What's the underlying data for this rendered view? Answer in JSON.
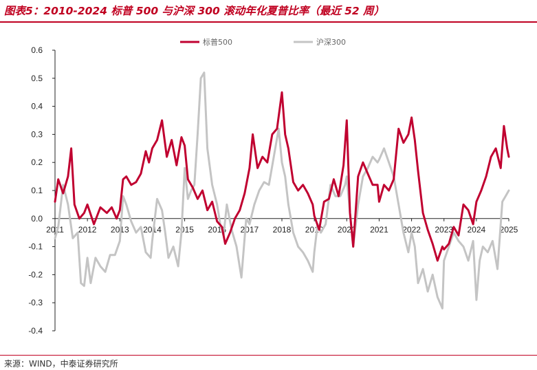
{
  "header": {
    "title": "图表5：2010-2024 标普 500 与沪深 300 滚动年化夏普比率（最近 52 周）"
  },
  "footer": {
    "source": "来源：WIND，中泰证券研究所"
  },
  "colors": {
    "spx": "#c00030",
    "csi": "#c4c4c4",
    "accent": "#c00020"
  },
  "chart_data": {
    "type": "line",
    "title": "",
    "xlabel": "",
    "ylabel": "",
    "ylim": [
      -0.4,
      0.6
    ],
    "yticks": [
      "0.6",
      "0.5",
      "0.4",
      "0.3",
      "0.2",
      "0.1",
      "0.0",
      "-0.1",
      "-0.2",
      "-0.3",
      "-0.4"
    ],
    "xlim": [
      2011.0,
      2025.0
    ],
    "xticks": [
      "2011",
      "2012",
      "2013",
      "2014",
      "2015",
      "2016",
      "2017",
      "2018",
      "2019",
      "2020",
      "2021",
      "2022",
      "2023",
      "2024",
      "2025"
    ],
    "grid": false,
    "legend_position": "top-center",
    "series": [
      {
        "name": "标普500",
        "x": [
          2011.0,
          2011.1,
          2011.25,
          2011.4,
          2011.5,
          2011.6,
          2011.75,
          2011.9,
          2012.0,
          2012.2,
          2012.4,
          2012.6,
          2012.75,
          2012.9,
          2013.0,
          2013.1,
          2013.2,
          2013.35,
          2013.5,
          2013.65,
          2013.8,
          2013.9,
          2014.0,
          2014.15,
          2014.3,
          2014.45,
          2014.6,
          2014.75,
          2014.9,
          2015.0,
          2015.1,
          2015.25,
          2015.4,
          2015.55,
          2015.7,
          2015.85,
          2016.0,
          2016.15,
          2016.25,
          2016.4,
          2016.55,
          2016.7,
          2016.85,
          2017.0,
          2017.1,
          2017.25,
          2017.4,
          2017.55,
          2017.7,
          2017.85,
          2018.0,
          2018.1,
          2018.2,
          2018.35,
          2018.5,
          2018.65,
          2018.8,
          2018.95,
          2019.0,
          2019.15,
          2019.3,
          2019.45,
          2019.6,
          2019.75,
          2019.9,
          2020.0,
          2020.1,
          2020.2,
          2020.35,
          2020.5,
          2020.65,
          2020.8,
          2020.95,
          2021.0,
          2021.15,
          2021.3,
          2021.45,
          2021.6,
          2021.75,
          2021.9,
          2022.0,
          2022.1,
          2022.2,
          2022.35,
          2022.5,
          2022.65,
          2022.8,
          2022.95,
          2023.0,
          2023.15,
          2023.3,
          2023.45,
          2023.6,
          2023.75,
          2023.9,
          2024.0,
          2024.15,
          2024.3,
          2024.45,
          2024.6,
          2024.75,
          2024.85,
          2024.95,
          2025.0
        ],
        "values": [
          0.06,
          0.14,
          0.09,
          0.15,
          0.25,
          0.05,
          0.0,
          0.02,
          0.05,
          -0.02,
          0.04,
          0.02,
          0.04,
          0.0,
          0.03,
          0.14,
          0.15,
          0.12,
          0.13,
          0.16,
          0.24,
          0.2,
          0.25,
          0.28,
          0.35,
          0.22,
          0.28,
          0.19,
          0.29,
          0.26,
          0.14,
          0.11,
          0.07,
          0.1,
          0.03,
          0.06,
          -0.01,
          -0.03,
          -0.09,
          -0.05,
          0.0,
          0.03,
          0.09,
          0.18,
          0.3,
          0.18,
          0.22,
          0.2,
          0.3,
          0.32,
          0.45,
          0.3,
          0.25,
          0.13,
          0.1,
          0.12,
          0.09,
          0.05,
          0.01,
          -0.04,
          0.06,
          0.07,
          0.14,
          0.08,
          0.19,
          0.35,
          0.02,
          -0.1,
          0.15,
          0.2,
          0.16,
          0.12,
          0.12,
          0.06,
          0.12,
          0.1,
          0.14,
          0.32,
          0.27,
          0.3,
          0.36,
          0.28,
          0.17,
          0.02,
          -0.04,
          -0.09,
          -0.15,
          -0.1,
          -0.11,
          -0.09,
          -0.03,
          -0.06,
          0.05,
          0.03,
          -0.02,
          0.06,
          0.1,
          0.15,
          0.22,
          0.25,
          0.18,
          0.33,
          0.25,
          0.22
        ]
      },
      {
        "name": "沪深300",
        "x": [
          2011.0,
          2011.1,
          2011.25,
          2011.4,
          2011.55,
          2011.7,
          2011.8,
          2011.9,
          2012.0,
          2012.1,
          2012.25,
          2012.4,
          2012.55,
          2012.7,
          2012.85,
          2013.0,
          2013.1,
          2013.2,
          2013.35,
          2013.5,
          2013.65,
          2013.8,
          2013.95,
          2014.0,
          2014.15,
          2014.3,
          2014.4,
          2014.5,
          2014.65,
          2014.8,
          2014.9,
          2015.0,
          2015.1,
          2015.2,
          2015.3,
          2015.4,
          2015.5,
          2015.6,
          2015.7,
          2015.85,
          2016.0,
          2016.1,
          2016.2,
          2016.3,
          2016.45,
          2016.6,
          2016.75,
          2016.9,
          2017.0,
          2017.15,
          2017.3,
          2017.45,
          2017.6,
          2017.75,
          2017.9,
          2018.0,
          2018.1,
          2018.2,
          2018.35,
          2018.5,
          2018.65,
          2018.8,
          2018.95,
          2019.0,
          2019.1,
          2019.2,
          2019.35,
          2019.5,
          2019.65,
          2019.8,
          2019.95,
          2020.0,
          2020.1,
          2020.2,
          2020.35,
          2020.5,
          2020.65,
          2020.8,
          2020.95,
          2021.0,
          2021.15,
          2021.3,
          2021.45,
          2021.6,
          2021.75,
          2021.9,
          2022.0,
          2022.1,
          2022.2,
          2022.35,
          2022.5,
          2022.65,
          2022.8,
          2022.95,
          2023.0,
          2023.15,
          2023.3,
          2023.45,
          2023.6,
          2023.75,
          2023.9,
          2024.0,
          2024.1,
          2024.2,
          2024.35,
          2024.5,
          2024.65,
          2024.8,
          2024.9,
          2025.0
        ],
        "values": [
          -0.07,
          -0.03,
          0.12,
          0.05,
          -0.07,
          -0.05,
          -0.23,
          -0.24,
          -0.14,
          -0.23,
          -0.14,
          -0.17,
          -0.19,
          -0.13,
          -0.13,
          -0.08,
          0.08,
          0.05,
          -0.01,
          -0.05,
          -0.03,
          -0.12,
          -0.14,
          -0.08,
          0.07,
          0.03,
          -0.05,
          -0.14,
          -0.1,
          -0.17,
          -0.05,
          0.18,
          0.07,
          0.1,
          0.12,
          0.3,
          0.5,
          0.52,
          0.25,
          0.12,
          0.05,
          -0.02,
          -0.06,
          0.05,
          -0.04,
          -0.1,
          -0.21,
          0.0,
          -0.02,
          0.05,
          0.1,
          0.13,
          0.12,
          0.22,
          0.32,
          0.2,
          0.15,
          0.05,
          -0.05,
          -0.1,
          -0.12,
          -0.15,
          -0.19,
          -0.12,
          -0.02,
          -0.05,
          -0.02,
          0.12,
          0.08,
          0.08,
          0.12,
          0.15,
          0.02,
          -0.1,
          0.05,
          0.15,
          0.18,
          0.22,
          0.2,
          0.21,
          0.25,
          0.2,
          0.15,
          0.05,
          -0.05,
          -0.12,
          -0.05,
          -0.1,
          -0.23,
          -0.18,
          -0.26,
          -0.2,
          -0.28,
          -0.32,
          -0.15,
          -0.1,
          -0.05,
          -0.08,
          -0.1,
          -0.15,
          -0.08,
          -0.29,
          -0.15,
          -0.1,
          -0.12,
          -0.08,
          -0.18,
          0.06,
          0.08,
          0.1
        ]
      }
    ]
  }
}
